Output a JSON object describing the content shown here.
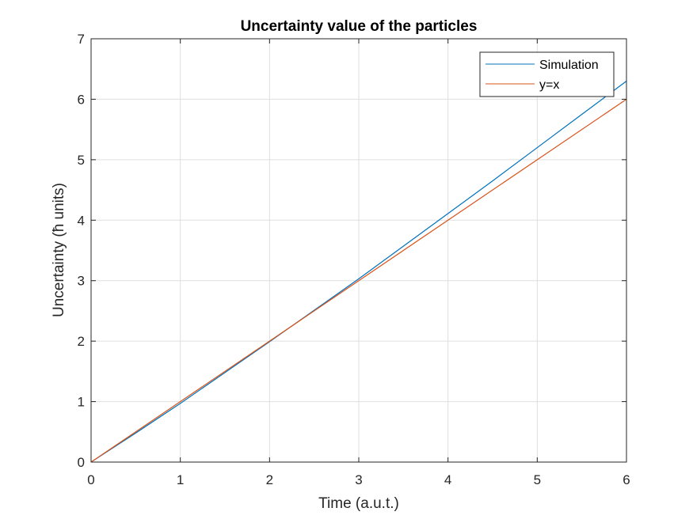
{
  "chart_data": {
    "type": "line",
    "title": "Uncertainty value of the particles",
    "xlabel": "Time (a.u.t.)",
    "ylabel": "Uncertainty (ħ units)",
    "xlim": [
      0,
      6
    ],
    "ylim": [
      0,
      7
    ],
    "xticks": [
      0,
      1,
      2,
      3,
      4,
      5,
      6
    ],
    "yticks": [
      0,
      1,
      2,
      3,
      4,
      5,
      6,
      7
    ],
    "grid": true,
    "legend_position": "top-right",
    "series": [
      {
        "name": "Simulation",
        "color": "#0072BD",
        "x": [
          0,
          0.5,
          1,
          1.5,
          2,
          2.5,
          3,
          3.5,
          4,
          4.5,
          5,
          5.5,
          6
        ],
        "y": [
          0,
          0.48,
          0.97,
          1.48,
          1.99,
          2.51,
          3.03,
          3.57,
          4.11,
          4.65,
          5.2,
          5.75,
          6.3
        ]
      },
      {
        "name": "y=x",
        "color": "#D95319",
        "x": [
          0,
          6
        ],
        "y": [
          0,
          6
        ]
      }
    ]
  }
}
